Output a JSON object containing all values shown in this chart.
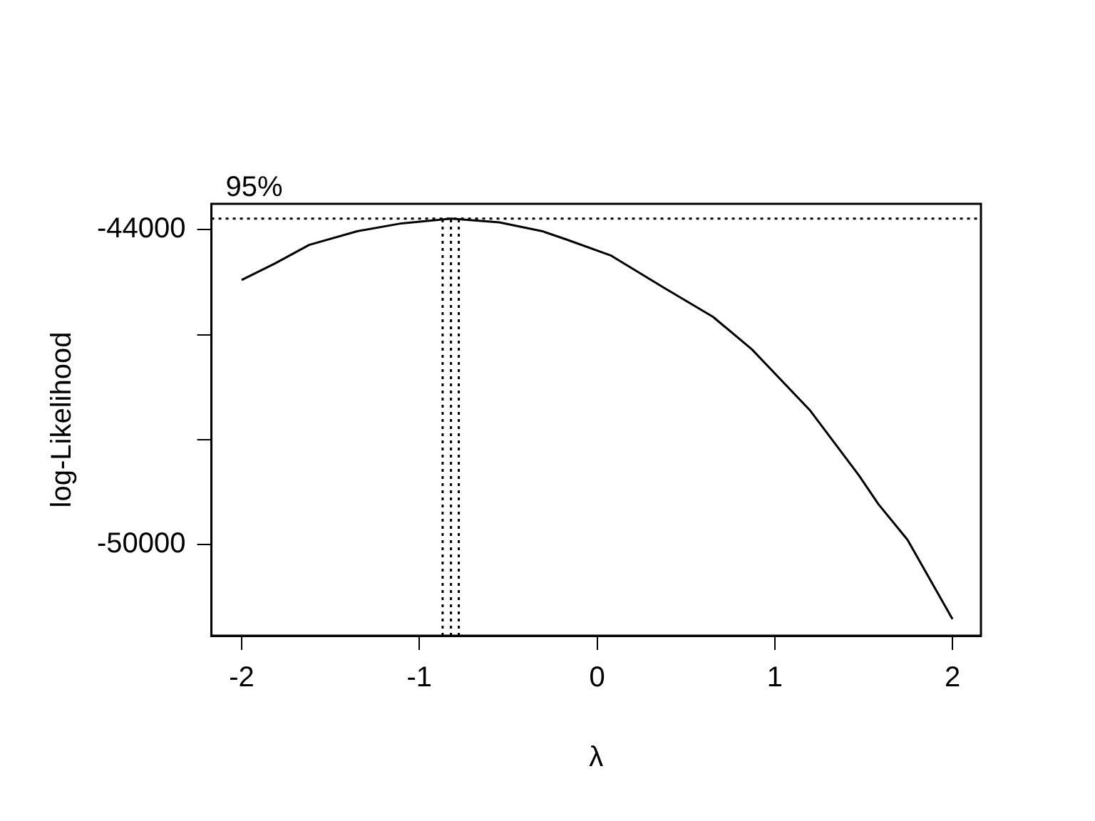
{
  "chart_data": {
    "type": "line",
    "xlabel": "λ",
    "ylabel": "log-Likelihood",
    "x": [
      -2,
      -1.81,
      -1.62,
      -1.35,
      -1.1,
      -0.82,
      -0.55,
      -0.307,
      -0.17,
      0.076,
      0.378,
      0.652,
      0.871,
      1.2,
      1.473,
      1.583,
      1.747,
      2
    ],
    "series": [
      {
        "color": "#000000",
        "values": [
          -44960,
          -44640,
          -44290,
          -44030,
          -43880,
          -43790,
          -43860,
          -44030,
          -44190,
          -44490,
          -45110,
          -45660,
          -46280,
          -47450,
          -48680,
          -49230,
          -49910,
          -51420
        ]
      }
    ],
    "annotations": [
      "95%"
    ],
    "xlim": [
      -2.17,
      2.16
    ],
    "ylim": [
      -51737,
      -43508
    ],
    "xticks": [
      -2,
      -1,
      0,
      1,
      2
    ],
    "yticks": [
      -44000,
      {
        "value": -46000,
        "label": null
      },
      {
        "value": -48000,
        "label": null
      },
      -50000
    ],
    "ref_lines": [
      {
        "axis": "y",
        "value": -43790,
        "line_style": "dotted"
      },
      {
        "axis": "x",
        "value": -0.869,
        "line_style": "dotted"
      },
      {
        "axis": "x",
        "value": -0.822,
        "line_style": "dotted"
      },
      {
        "axis": "x",
        "value": -0.778,
        "line_style": "dotted"
      }
    ],
    "grid": false,
    "legend": false,
    "marker": "none",
    "line_style": "solid"
  }
}
